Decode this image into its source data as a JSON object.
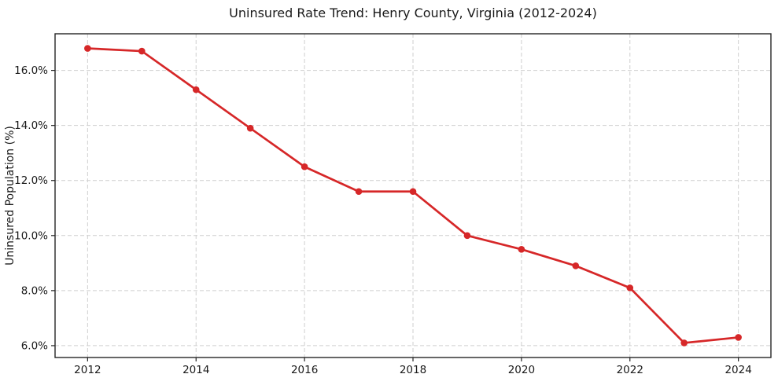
{
  "chart_data": {
    "type": "line",
    "title": "Uninsured Rate Trend: Henry County, Virginia (2012-2024)",
    "xlabel": "",
    "ylabel": "Uninsured Population (%)",
    "x": [
      2012,
      2013,
      2014,
      2015,
      2016,
      2017,
      2018,
      2019,
      2020,
      2021,
      2022,
      2023,
      2024
    ],
    "values": [
      16.8,
      16.7,
      15.3,
      13.9,
      12.5,
      11.6,
      11.6,
      10.0,
      9.5,
      8.9,
      8.1,
      6.1,
      6.3
    ],
    "x_ticks": [
      2012,
      2014,
      2016,
      2018,
      2020,
      2022,
      2024
    ],
    "x_tick_labels": [
      "2012",
      "2014",
      "2016",
      "2018",
      "2020",
      "2022",
      "2024"
    ],
    "y_ticks": [
      6,
      8,
      10,
      12,
      14,
      16
    ],
    "y_tick_labels": [
      "6.0%",
      "8.0%",
      "10.0%",
      "12.0%",
      "14.0%",
      "16.0%"
    ],
    "xlim": [
      2011.4,
      2024.6
    ],
    "ylim": [
      5.57,
      17.33
    ],
    "grid": true,
    "grid_style": "dashed",
    "legend": false,
    "colors": {
      "line": "#d62728",
      "marker": "#d62728",
      "grid": "#cfcfcf",
      "spine": "#242424",
      "text": "#1a1a1a",
      "background": "#ffffff"
    }
  }
}
